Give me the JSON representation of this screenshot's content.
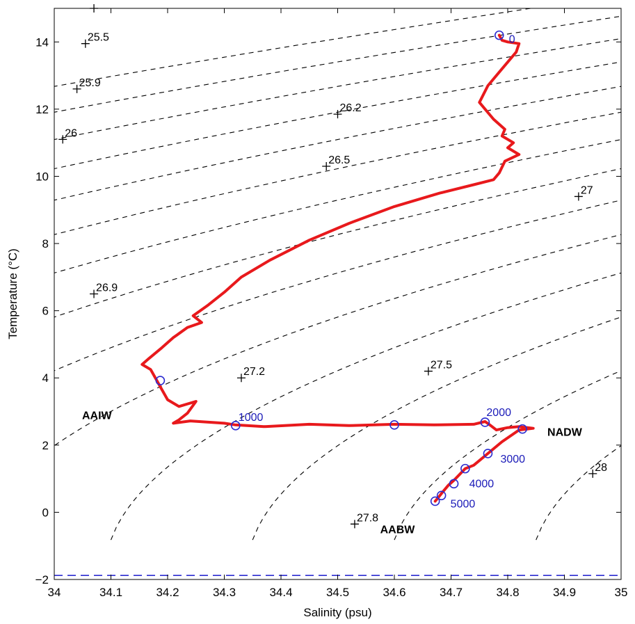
{
  "chart_data": {
    "type": "line",
    "title": "",
    "xlabel": "Salinity (psu)",
    "ylabel": "Temperature (°C)",
    "xlim": [
      34,
      35
    ],
    "ylim": [
      -2,
      15
    ],
    "x_ticks": [
      34,
      34.1,
      34.2,
      34.3,
      34.4,
      34.5,
      34.6,
      34.7,
      34.8,
      34.9,
      35
    ],
    "x_tick_labels": [
      "34",
      "34.1",
      "34.2",
      "34.3",
      "34.4",
      "34.5",
      "34.6",
      "34.7",
      "34.8",
      "34.9",
      "35"
    ],
    "y_ticks": [
      -2,
      0,
      2,
      4,
      6,
      8,
      10,
      12,
      14
    ],
    "y_tick_labels": [
      "−2",
      "0",
      "2",
      "4",
      "6",
      "8",
      "10",
      "12",
      "14"
    ],
    "grid": false,
    "colors": {
      "profile": "#e8191c",
      "depth_markers": "#2b2bd0",
      "isopycnals": "#000000",
      "freezing_line": "#2b2bd0"
    },
    "series": [
      {
        "style": "red-solid",
        "points": [
          [
            34.785,
            14.2
          ],
          [
            34.79,
            14.05
          ],
          [
            34.8,
            14.0
          ],
          [
            34.82,
            13.95
          ],
          [
            34.815,
            13.7
          ],
          [
            34.79,
            13.2
          ],
          [
            34.765,
            12.7
          ],
          [
            34.75,
            12.2
          ],
          [
            34.775,
            11.7
          ],
          [
            34.795,
            11.4
          ],
          [
            34.79,
            11.2
          ],
          [
            34.81,
            11.0
          ],
          [
            34.8,
            10.85
          ],
          [
            34.82,
            10.65
          ],
          [
            34.795,
            10.45
          ],
          [
            34.785,
            10.1
          ],
          [
            34.775,
            9.9
          ],
          [
            34.74,
            9.75
          ],
          [
            34.68,
            9.5
          ],
          [
            34.6,
            9.1
          ],
          [
            34.52,
            8.6
          ],
          [
            34.45,
            8.1
          ],
          [
            34.38,
            7.5
          ],
          [
            34.33,
            7.0
          ],
          [
            34.3,
            6.55
          ],
          [
            34.27,
            6.15
          ],
          [
            34.245,
            5.85
          ],
          [
            34.26,
            5.65
          ],
          [
            34.235,
            5.5
          ],
          [
            34.21,
            5.2
          ],
          [
            34.19,
            4.9
          ],
          [
            34.165,
            4.55
          ],
          [
            34.155,
            4.4
          ],
          [
            34.17,
            4.25
          ],
          [
            34.18,
            3.95
          ],
          [
            34.19,
            3.65
          ],
          [
            34.2,
            3.35
          ],
          [
            34.22,
            3.15
          ],
          [
            34.25,
            3.3
          ],
          [
            34.235,
            2.95
          ],
          [
            34.22,
            2.75
          ],
          [
            34.21,
            2.65
          ],
          [
            34.24,
            2.72
          ],
          [
            34.3,
            2.65
          ],
          [
            34.32,
            2.6
          ],
          [
            34.37,
            2.55
          ],
          [
            34.45,
            2.62
          ],
          [
            34.52,
            2.58
          ],
          [
            34.6,
            2.62
          ],
          [
            34.67,
            2.6
          ],
          [
            34.74,
            2.62
          ],
          [
            34.76,
            2.7
          ],
          [
            34.77,
            2.58
          ],
          [
            34.78,
            2.45
          ],
          [
            34.8,
            2.52
          ],
          [
            34.82,
            2.55
          ],
          [
            34.845,
            2.5
          ],
          [
            34.82,
            2.45
          ],
          [
            34.79,
            2.1
          ],
          [
            34.765,
            1.75
          ],
          [
            34.74,
            1.4
          ],
          [
            34.725,
            1.3
          ],
          [
            34.705,
            0.95
          ],
          [
            34.695,
            0.8
          ],
          [
            34.685,
            0.6
          ],
          [
            34.678,
            0.45
          ],
          [
            34.672,
            0.33
          ]
        ]
      }
    ],
    "depth_markers": [
      {
        "label": "0",
        "s": 34.785,
        "t": 14.2
      },
      {
        "label": "",
        "s": 34.187,
        "t": 3.92
      },
      {
        "label": "1000",
        "s": 34.32,
        "t": 2.58
      },
      {
        "label": "",
        "s": 34.6,
        "t": 2.6
      },
      {
        "label": "2000",
        "s": 34.76,
        "t": 2.68
      },
      {
        "label": "",
        "s": 34.826,
        "t": 2.48
      },
      {
        "label": "3000",
        "s": 34.765,
        "t": 1.75
      },
      {
        "label": "",
        "s": 34.725,
        "t": 1.3
      },
      {
        "label": "4000",
        "s": 34.705,
        "t": 0.85
      },
      {
        "label": "",
        "s": 34.683,
        "t": 0.5
      },
      {
        "label": "5000",
        "s": 34.672,
        "t": 0.33
      }
    ],
    "isopycnals": [
      {
        "label": "25.5",
        "s": 34.055,
        "t": 13.95
      },
      {
        "label": "25.9",
        "s": 34.04,
        "t": 12.6
      },
      {
        "label": "26",
        "s": 34.015,
        "t": 11.1
      },
      {
        "label": "26.2",
        "s": 34.5,
        "t": 11.85
      },
      {
        "label": "26.5",
        "s": 34.48,
        "t": 10.3
      },
      {
        "label": "27",
        "s": 34.925,
        "t": 9.4
      },
      {
        "label": "26.9",
        "s": 34.07,
        "t": 6.5
      },
      {
        "label": "27.2",
        "s": 34.33,
        "t": 4.0
      },
      {
        "label": "27.5",
        "s": 34.66,
        "t": 4.2
      },
      {
        "label": "27.8",
        "s": 34.53,
        "t": -0.35
      },
      {
        "label": "28",
        "s": 34.95,
        "t": 1.15
      },
      {
        "label": "",
        "s": 34.07,
        "t": 15.0
      }
    ],
    "water_masses": [
      {
        "label": "AAIW",
        "s": 34.0,
        "t": 2.9
      },
      {
        "label": "NADW",
        "s": 34.87,
        "t": 2.4
      },
      {
        "label": "AABW",
        "s": 34.575,
        "t": -0.5
      }
    ],
    "freezing_line_t": -1.88
  }
}
